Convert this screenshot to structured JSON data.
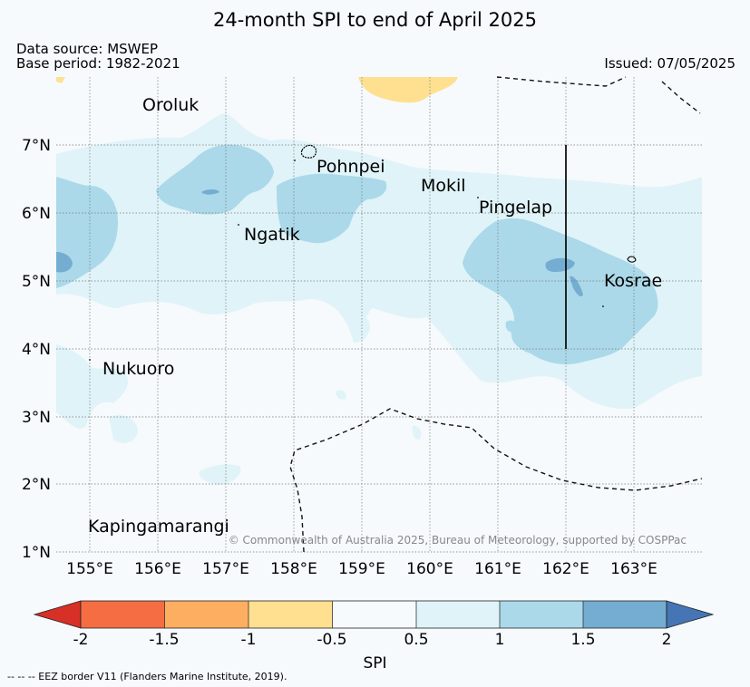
{
  "title": "24-month SPI to end of April 2025",
  "data_source": "Data source: MSWEP",
  "base_period": "Base period: 1982-2021",
  "issued": "Issued: 07/05/2025",
  "copyright": "© Commonwealth of Australia 2025, Bureau of Meteorology, supported by COSPPac",
  "places": [
    {
      "name": "Oroluk"
    },
    {
      "name": "Pohnpei"
    },
    {
      "name": "Mokil"
    },
    {
      "name": "Pingelap"
    },
    {
      "name": "Ngatik"
    },
    {
      "name": "Kosrae"
    },
    {
      "name": "Nukuoro"
    },
    {
      "name": "Kapingamarangi"
    }
  ],
  "lat_ticks": [
    "7°N",
    "6°N",
    "5°N",
    "4°N",
    "3°N",
    "2°N",
    "1°N"
  ],
  "lon_ticks": [
    "155°E",
    "156°E",
    "157°E",
    "158°E",
    "159°E",
    "160°E",
    "161°E",
    "162°E",
    "163°E"
  ],
  "colorbar": {
    "label": "SPI",
    "ticks": [
      "-2",
      "-1.5",
      "-1",
      "-0.5",
      "0.5",
      "1",
      "1.5",
      "2"
    ],
    "colors": {
      "below_-2": "#d73027",
      "-2_-1.5": "#f46d43",
      "-1.5_-1": "#fdae61",
      "-1_-0.5": "#fee090",
      "-0.5_0.5": "#f6fafd",
      "0.5_1": "#e0f3f8",
      "1_1.5": "#abd9e9",
      "1.5_2": "#74add1",
      "above_2": "#4575b4"
    }
  },
  "footnote": "--  --  -- EEZ border V11 (Flanders Marine Institute, 2019)."
}
